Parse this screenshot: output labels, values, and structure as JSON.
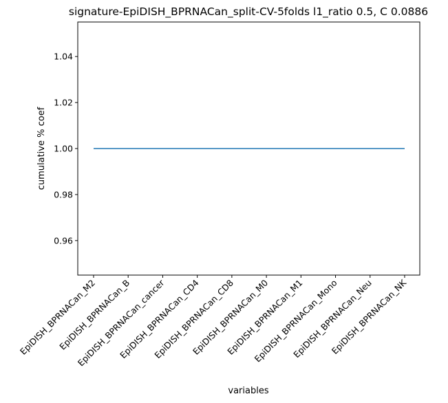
{
  "chart_data": {
    "type": "line",
    "title": "signature-EpiDISH_BPRNACan_split-CV-5folds l1_ratio 0.5, C 0.0886",
    "xlabel": "variables",
    "ylabel": "cumulative % coef",
    "categories": [
      "EpiDISH_BPRNACan_M2",
      "EpiDISH_BPRNACan_B",
      "EpiDISH_BPRNACan_cancer",
      "EpiDISH_BPRNACan_CD4",
      "EpiDISH_BPRNACan_CD8",
      "EpiDISH_BPRNACan_M0",
      "EpiDISH_BPRNACan_M1",
      "EpiDISH_BPRNACan_Mono",
      "EpiDISH_BPRNACan_Neu",
      "EpiDISH_BPRNACan_NK"
    ],
    "series": [
      {
        "values": [
          1.0,
          1.0,
          1.0,
          1.0,
          1.0,
          1.0,
          1.0,
          1.0,
          1.0,
          1.0
        ],
        "color": "#1f77b4"
      }
    ],
    "ylim": [
      0.945,
      1.055
    ],
    "yticks": [
      0.96,
      0.98,
      1.0,
      1.02,
      1.04
    ],
    "ytick_labels": [
      "0.96",
      "0.98",
      "1.00",
      "1.02",
      "1.04"
    ],
    "grid": false,
    "legend": false
  }
}
